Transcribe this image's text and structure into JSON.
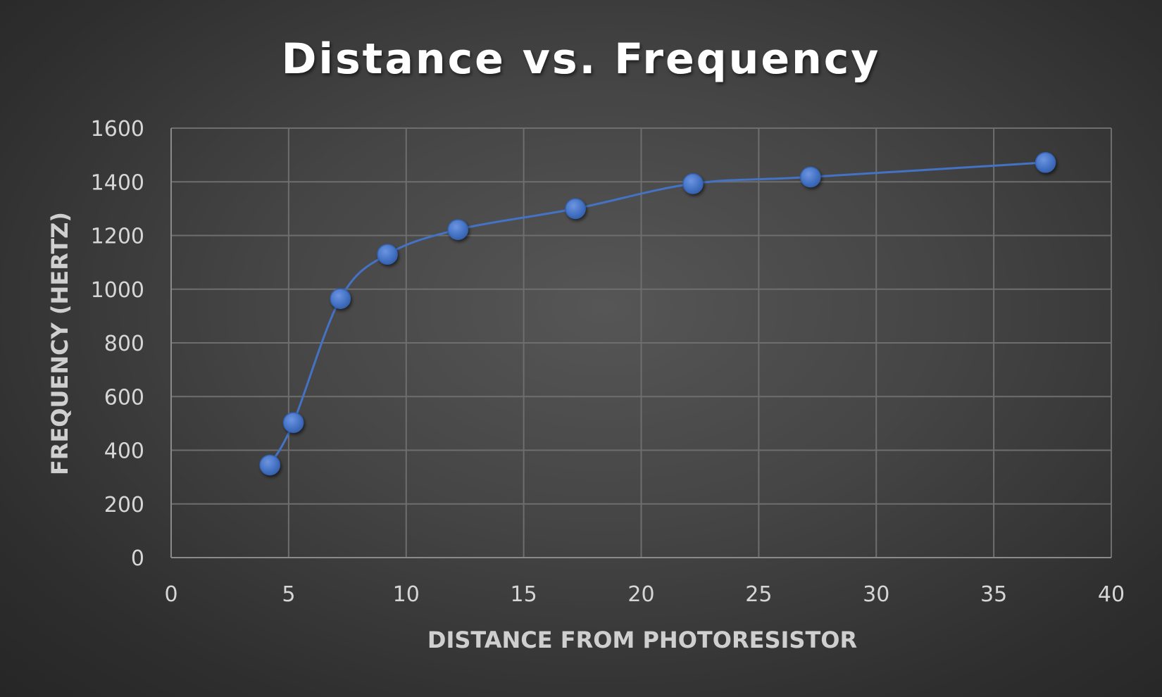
{
  "chart_data": {
    "type": "scatter",
    "title": "Distance vs. Frequency",
    "xlabel": "DISTANCE FROM PHOTORESISTOR",
    "ylabel": "FREQUENCY (HERTZ)",
    "xlim": [
      0,
      40
    ],
    "ylim": [
      0,
      1600
    ],
    "xticks": [
      0,
      5,
      10,
      15,
      20,
      25,
      30,
      35,
      40
    ],
    "yticks": [
      0,
      200,
      400,
      600,
      800,
      1000,
      1200,
      1400,
      1600
    ],
    "grid": true,
    "smooth_line": true,
    "series": [
      {
        "color": "#4472c4",
        "x": [
          4.2,
          5.2,
          7.2,
          9.2,
          12.2,
          17.2,
          22.2,
          27.2,
          37.2
        ],
        "y": [
          345,
          503,
          965,
          1130,
          1222,
          1300,
          1393,
          1418,
          1472
        ]
      }
    ]
  }
}
